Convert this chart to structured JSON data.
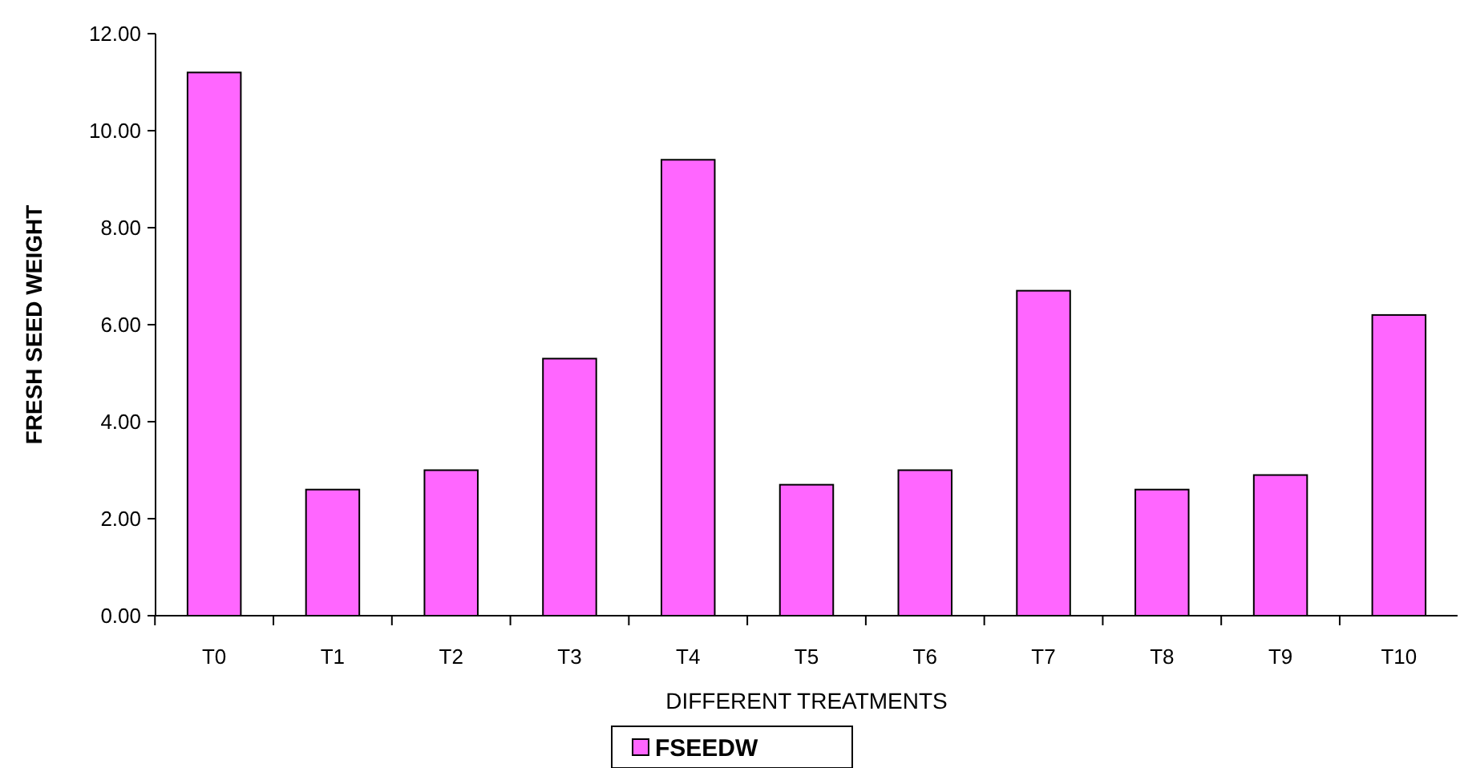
{
  "chart_data": {
    "type": "bar",
    "xlabel": "DIFFERENT TREATMENTS",
    "ylabel": "FRESH SEED WEIGHT",
    "categories": [
      "T0",
      "T1",
      "T2",
      "T3",
      "T4",
      "T5",
      "T6",
      "T7",
      "T8",
      "T9",
      "T10"
    ],
    "series": [
      {
        "name": "FSEEDW",
        "color": "#ff66ff",
        "values": [
          11.2,
          2.6,
          3.0,
          5.3,
          9.4,
          2.7,
          3.0,
          6.7,
          2.6,
          2.9,
          6.2
        ]
      }
    ],
    "ylim": [
      0,
      12
    ],
    "yticks": [
      {
        "value": 0,
        "label": "0.00"
      },
      {
        "value": 2,
        "label": "2.00"
      },
      {
        "value": 4,
        "label": "4.00"
      },
      {
        "value": 6,
        "label": "6.00"
      },
      {
        "value": 8,
        "label": "8.00"
      },
      {
        "value": 10,
        "label": "10.00"
      },
      {
        "value": 12,
        "label": "12.00"
      }
    ],
    "grid": false,
    "legend": "bottom"
  }
}
